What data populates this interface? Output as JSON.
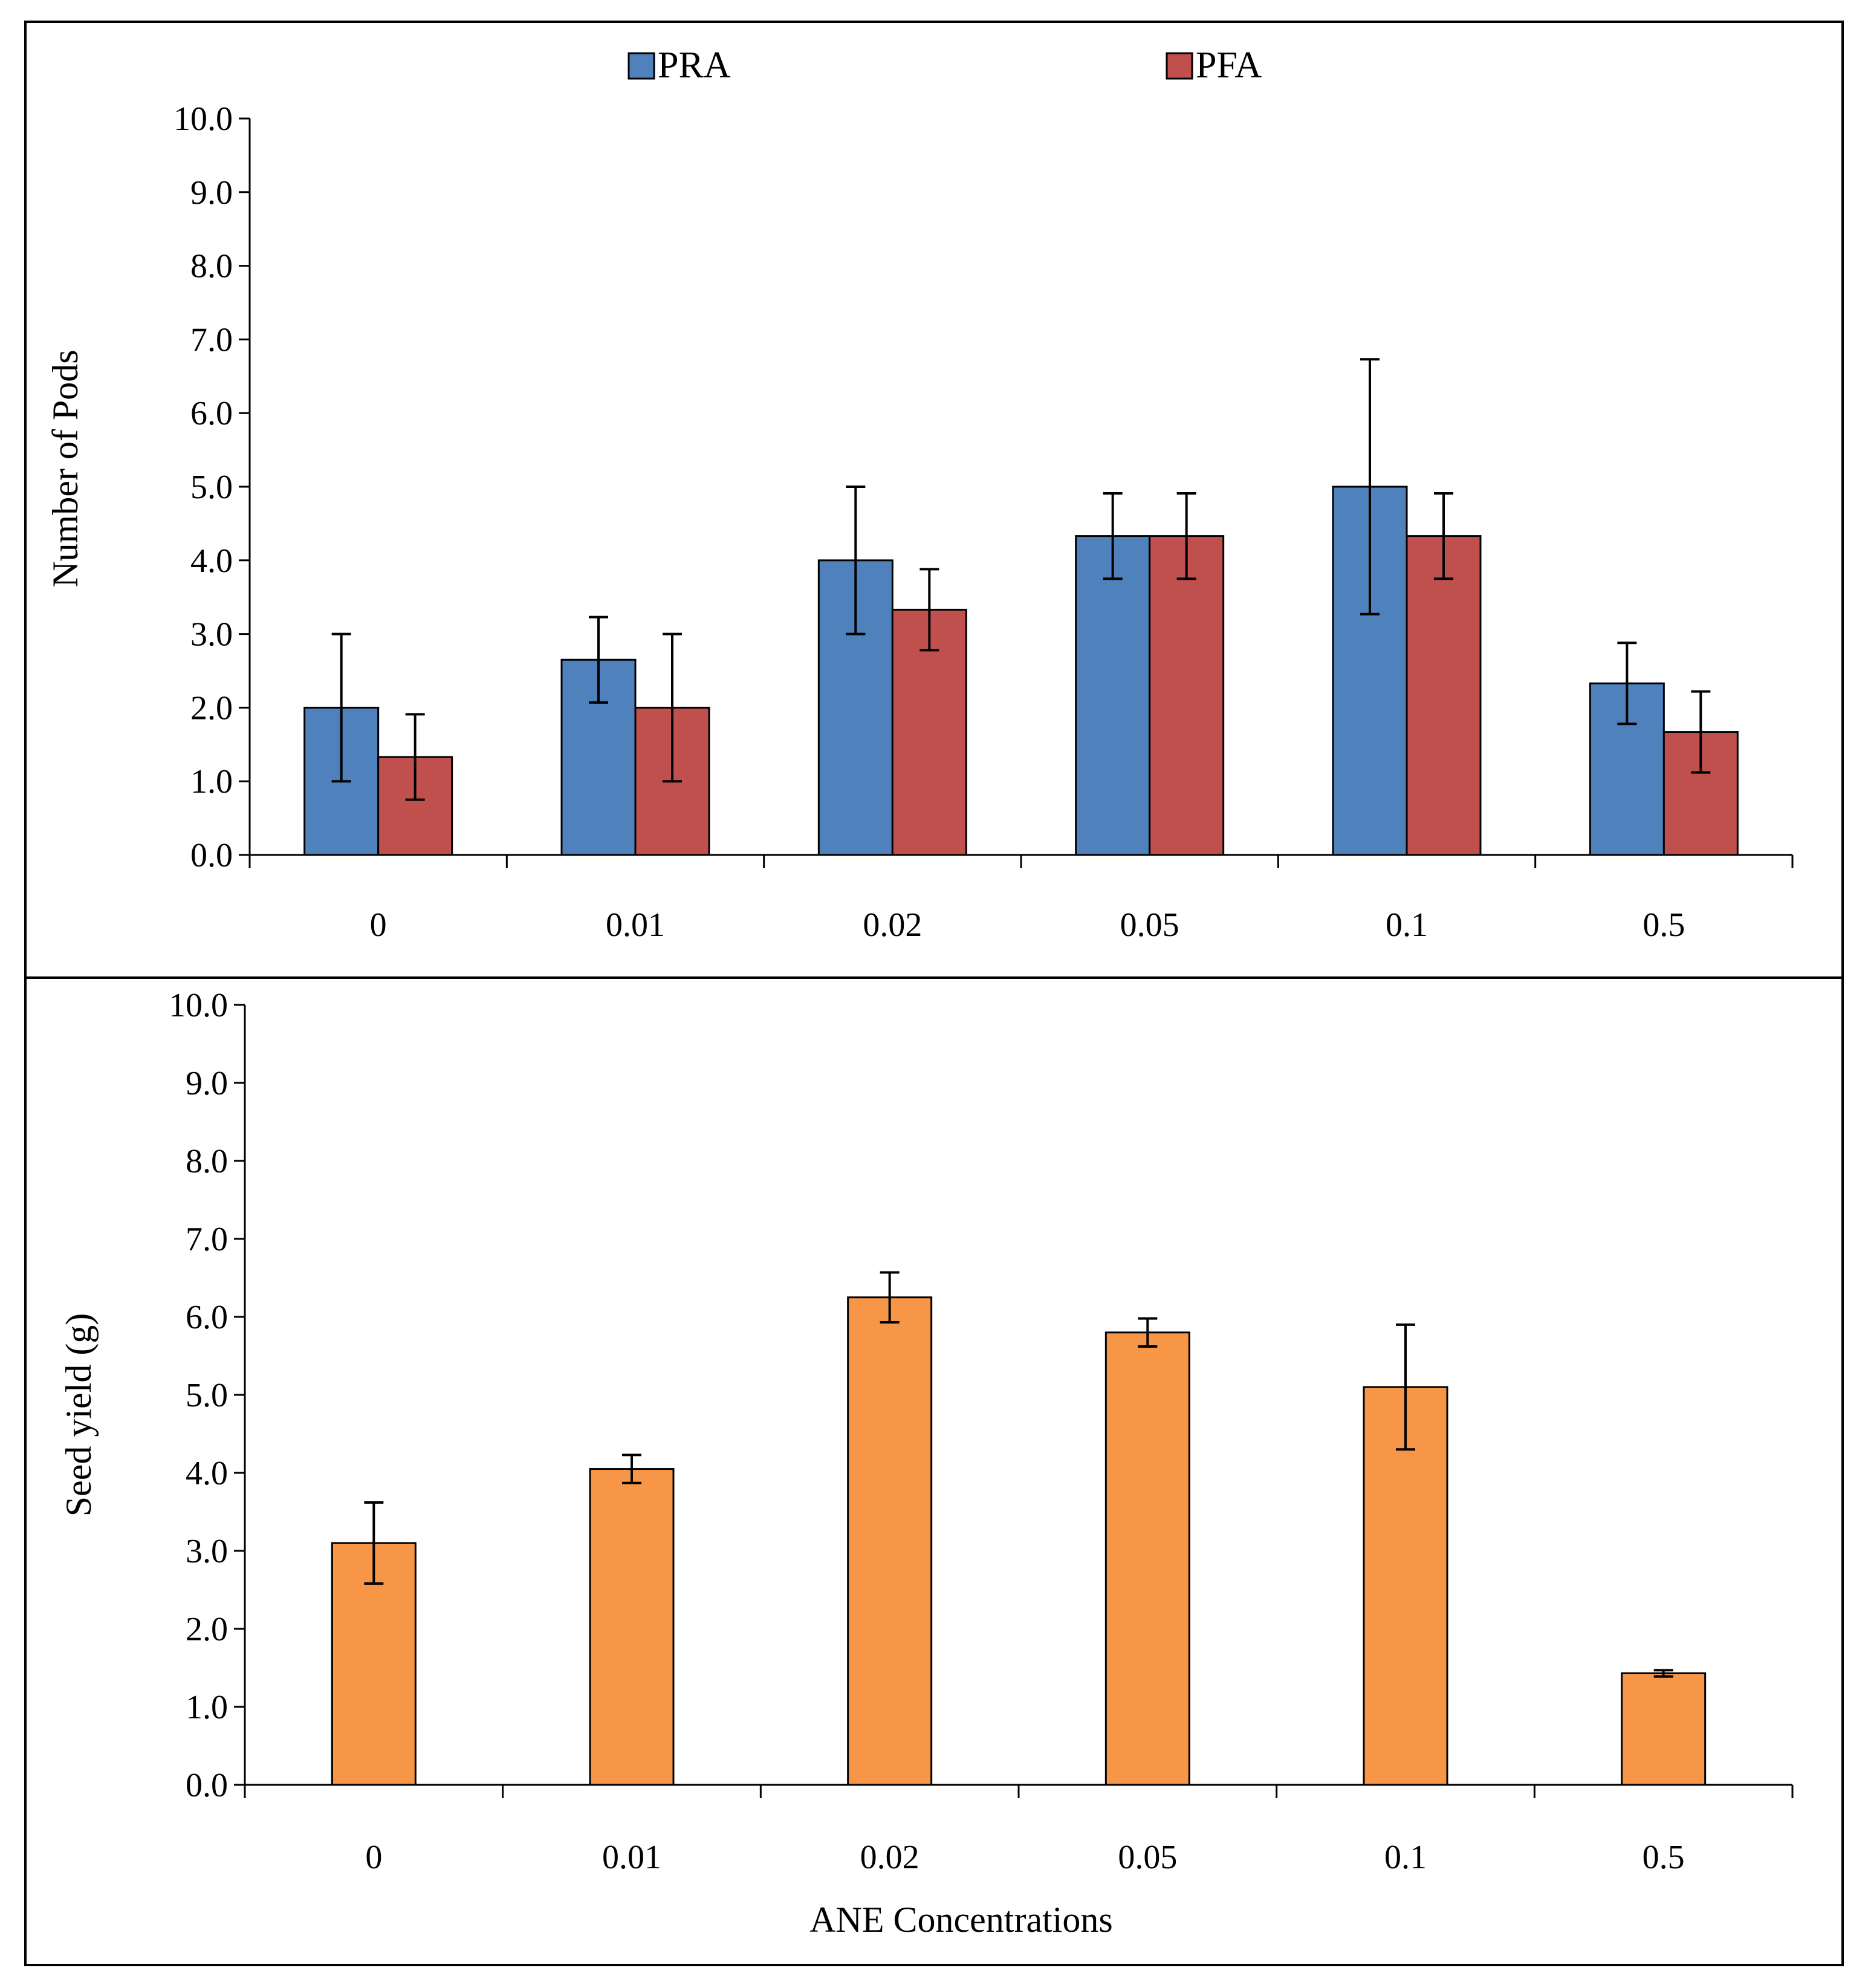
{
  "chart_data": [
    {
      "type": "bar",
      "categories": [
        "0",
        "0.01",
        "0.02",
        "0.05",
        "0.1",
        "0.5"
      ],
      "series": [
        {
          "name": "PRA",
          "values": [
            2.0,
            2.65,
            4.0,
            4.33,
            5.0,
            2.33
          ],
          "errors": [
            1.0,
            0.58,
            1.0,
            0.58,
            1.73,
            0.55
          ],
          "color": "#4f81bd"
        },
        {
          "name": "PFA",
          "values": [
            1.33,
            2.0,
            3.33,
            4.33,
            4.33,
            1.67
          ],
          "errors": [
            0.58,
            1.0,
            0.55,
            0.58,
            0.58,
            0.55
          ],
          "color": "#c0504d"
        }
      ],
      "title": "",
      "xlabel": "",
      "ylabel": "Number of Pods",
      "ylim": [
        0,
        10
      ],
      "yticks": [
        "0.0",
        "1.0",
        "2.0",
        "3.0",
        "4.0",
        "5.0",
        "6.0",
        "7.0",
        "8.0",
        "9.0",
        "10.0"
      ],
      "legend": "top-center",
      "grid": false
    },
    {
      "type": "bar",
      "categories": [
        "0",
        "0.01",
        "0.02",
        "0.05",
        "0.1",
        "0.5"
      ],
      "series": [
        {
          "values": [
            3.1,
            4.05,
            6.25,
            5.8,
            5.1,
            1.43
          ],
          "errors": [
            0.52,
            0.18,
            0.32,
            0.18,
            0.8,
            0.04
          ],
          "color": "#f79646"
        }
      ],
      "title": "",
      "xlabel": "ANE Concentrations",
      "ylabel": "Seed yield (g)",
      "ylim": [
        0,
        10
      ],
      "yticks": [
        "0.0",
        "1.0",
        "2.0",
        "3.0",
        "4.0",
        "5.0",
        "6.0",
        "7.0",
        "8.0",
        "9.0",
        "10.0"
      ],
      "grid": false
    }
  ]
}
